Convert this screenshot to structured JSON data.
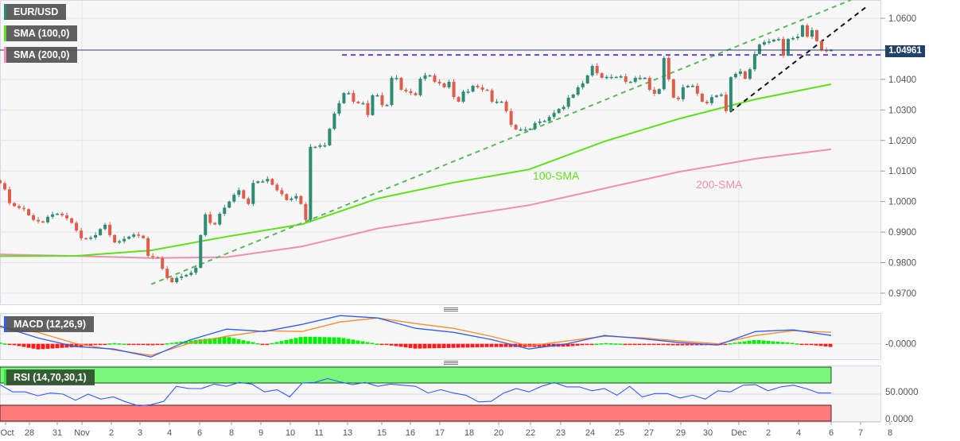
{
  "legend": {
    "symbol": "EUR/USD",
    "sma100": "SMA (100,0)",
    "sma200": "SMA (200,0)",
    "macd": "MACD (12,26,9)",
    "rsi": "RSI (14,70,30,1)"
  },
  "last_price": "1.04961",
  "annotations": {
    "sma100_label": "100-SMA",
    "sma200_label": "200-SMA"
  },
  "colors": {
    "up": "#2e8b74",
    "down": "#e15d4b",
    "sma100": "#5ee01a",
    "sma200": "#f28db3",
    "macd": "#2f5bff",
    "signal": "#ff8a2a",
    "hist_pos": "#00ee00",
    "hist_neg": "#ff1a1a",
    "trend_up": "#5cb85c",
    "resistance": "#6a3fc9",
    "support": "#111111",
    "price_line": "#23406a"
  },
  "chart_data": [
    {
      "type": "candlestick",
      "title": "EUR/USD",
      "ylim": [
        0.968,
        1.066
      ],
      "yticks": [
        "1.0600",
        "1.0400",
        "1.0300",
        "1.0200",
        "1.0100",
        "1.0000",
        "0.9900",
        "0.9800",
        "0.9700"
      ],
      "xticks": [
        "Oct",
        "28",
        "31",
        "Nov",
        "2",
        "3",
        "4",
        "6",
        "8",
        "9",
        "10",
        "11",
        "13",
        "15",
        "16",
        "17",
        "18",
        "20",
        "22",
        "23",
        "24",
        "25",
        "27",
        "29",
        "30",
        "Dec",
        "2",
        "4",
        "6",
        "7",
        "8"
      ],
      "closes": [
        1.006,
        1.004,
        0.9995,
        0.9985,
        0.9979,
        0.9975,
        0.9955,
        0.994,
        0.9935,
        0.9932,
        0.995,
        0.9958,
        0.996,
        0.9955,
        0.9945,
        0.993,
        0.9905,
        0.988,
        0.9878,
        0.9882,
        0.989,
        0.991,
        0.9924,
        0.989,
        0.9866,
        0.987,
        0.9878,
        0.9885,
        0.9892,
        0.9888,
        0.988,
        0.9822,
        0.9818,
        0.9815,
        0.978,
        0.975,
        0.9736,
        0.975,
        0.9755,
        0.976,
        0.9767,
        0.9783,
        0.989,
        0.9958,
        0.993,
        0.9925,
        0.996,
        0.998,
        1.0,
        1.0022,
        1.0037,
        1.001,
        0.9992,
        1.0061,
        1.0066,
        1.0066,
        1.0074,
        1.0055,
        1.0037,
        1.0024,
        1.0005,
        1.001,
        1.0018,
        0.9992,
        0.994,
        1.0179,
        1.0179,
        1.0184,
        1.0184,
        1.0238,
        1.0288,
        1.0322,
        1.0355,
        1.0355,
        1.0327,
        1.0322,
        1.0322,
        1.0283,
        1.0348,
        1.0348,
        1.0316,
        1.0316,
        1.0405,
        1.0405,
        1.0366,
        1.0361,
        1.0355,
        1.0348,
        1.0402,
        1.0413,
        1.0413,
        1.0392,
        1.0387,
        1.0374,
        1.0392,
        1.0342,
        1.0327,
        1.036,
        1.036,
        1.0379,
        1.0374,
        1.0366,
        1.0364,
        1.0327,
        1.0327,
        1.0327,
        1.0296,
        1.0251,
        1.0236,
        1.0236,
        1.0236,
        1.0238,
        1.0257,
        1.0262,
        1.0264,
        1.0277,
        1.029,
        1.0303,
        1.031,
        1.034,
        1.035,
        1.0374,
        1.0387,
        1.0413,
        1.0444,
        1.042,
        1.0405,
        1.0408,
        1.0408,
        1.0408,
        1.041,
        1.0392,
        1.0392,
        1.0405,
        1.0405,
        1.0405,
        1.0366,
        1.0353,
        1.0368,
        1.047,
        1.04,
        1.034,
        1.0335,
        1.0374,
        1.0379,
        1.0379,
        1.0353,
        1.0327,
        1.0322,
        1.0342,
        1.0347,
        1.035,
        1.0296,
        1.0407,
        1.0418,
        1.0426,
        1.0402,
        1.0433,
        1.0483,
        1.0514,
        1.0522,
        1.0524,
        1.053,
        1.0532,
        1.0478,
        1.0532,
        1.0535,
        1.054,
        1.0577,
        1.054,
        1.0561,
        1.0525,
        1.0496,
        1.0494,
        1.04961
      ],
      "sma100": [
        0.9821,
        0.9822,
        0.984,
        0.9885,
        0.9926,
        1.001,
        1.0062,
        1.0105,
        1.0197,
        1.0272,
        1.0335,
        1.0384
      ],
      "sma200": [
        0.9827,
        0.9822,
        0.9815,
        0.9818,
        0.9853,
        0.9912,
        0.995,
        0.9988,
        1.0043,
        1.0098,
        1.014,
        1.0171
      ],
      "trendlines": {
        "rising_support_green": [
          0.9729,
          1.066
        ],
        "horizontal_resistance": 1.048,
        "rising_support_black": [
          1.0293,
          1.0639
        ]
      },
      "last_price": 1.04961
    },
    {
      "type": "line",
      "title": "MACD (12,26,9)",
      "yticks": [
        "-0.0000"
      ],
      "macd": [
        0.0045,
        0.0015,
        -0.0007,
        -0.0013,
        -0.0033,
        0.0009,
        0.0037,
        0.0031,
        0.0049,
        0.0071,
        0.0065,
        0.0039,
        0.0029,
        0.0011,
        -0.0013,
        0.0,
        0.0021,
        0.0013,
        0.0003,
        -0.0003,
        0.0031,
        0.0035,
        0.0021
      ],
      "signal": [
        0.0042,
        0.0029,
        0.0001,
        -0.0015,
        -0.0029,
        0.0001,
        0.0019,
        0.0033,
        0.0031,
        0.0055,
        0.0065,
        0.0051,
        0.0039,
        0.0019,
        -0.0005,
        0.0007,
        0.0019,
        0.0015,
        0.0007,
        0.0,
        0.0021,
        0.0033,
        0.0029
      ]
    },
    {
      "type": "line",
      "title": "RSI (14,70,30,1)",
      "yticks": [
        "50.0000",
        "0.0000"
      ],
      "ylim": [
        0,
        100
      ],
      "overbought": 70,
      "oversold": 30,
      "values": [
        67,
        54,
        54,
        47,
        52,
        50,
        39,
        50,
        41,
        45,
        36,
        29,
        31,
        37,
        64,
        60,
        60,
        68,
        64,
        71,
        68,
        54,
        58,
        45,
        70,
        71,
        78,
        72,
        67,
        71,
        64,
        68,
        66,
        64,
        52,
        58,
        52,
        48,
        36,
        37,
        52,
        60,
        54,
        64,
        71,
        63,
        63,
        56,
        60,
        48,
        64,
        45,
        51,
        51,
        43,
        48,
        41,
        56,
        54,
        66,
        67,
        56,
        63,
        66,
        60,
        52,
        52
      ]
    }
  ]
}
